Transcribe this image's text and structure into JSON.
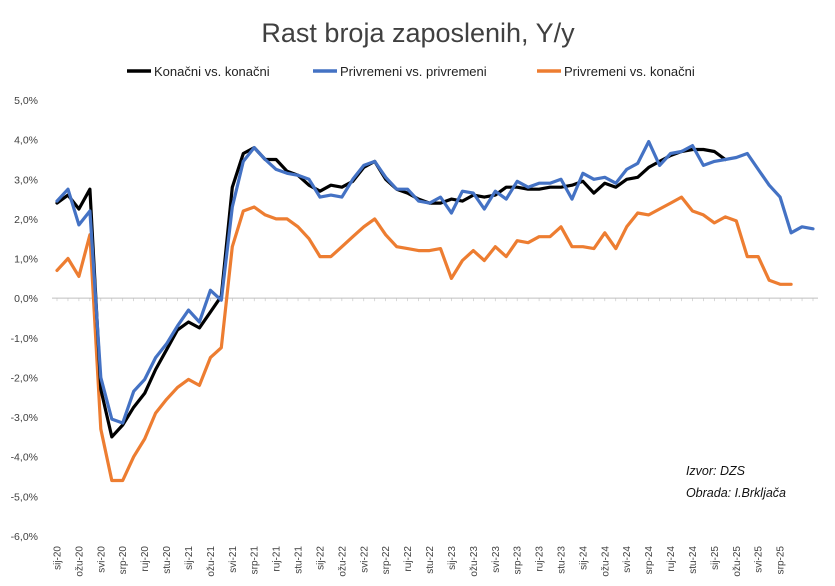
{
  "chart_data": {
    "type": "line",
    "title": "Rast broja zaposlenih, Y/y",
    "xlabel": "",
    "ylabel": "",
    "ylim": [
      -6.0,
      5.0
    ],
    "y_ticks": [
      "-6,0%",
      "-5,0%",
      "-4,0%",
      "-3,0%",
      "-2,0%",
      "-1,0%",
      "0,0%",
      "1,0%",
      "2,0%",
      "3,0%",
      "4,0%",
      "5,0%"
    ],
    "x_ticks": [
      "sij-20",
      "ožu-20",
      "svi-20",
      "srp-20",
      "ruj-20",
      "stu-20",
      "sij-21",
      "ožu-21",
      "svi-21",
      "srp-21",
      "ruj-21",
      "stu-21",
      "sij-22",
      "ožu-22",
      "svi-22",
      "srp-22",
      "ruj-22",
      "stu-22",
      "sij-23",
      "ožu-23",
      "svi-23",
      "srp-23",
      "ruj-23",
      "stu-23",
      "sij-24",
      "ožu-24",
      "svi-24",
      "srp-24",
      "ruj-24",
      "stu-24",
      "sij-25",
      "ožu-25",
      "svi-25",
      "srp-25"
    ],
    "grid": false,
    "legend_position": "top",
    "series": [
      {
        "name": "Konačni vs. konačni",
        "color": "#000000",
        "values": [
          2.4,
          2.6,
          2.25,
          2.75,
          -2.3,
          -3.5,
          -3.2,
          -2.75,
          -2.4,
          -1.8,
          -1.3,
          -0.8,
          -0.6,
          -0.75,
          -0.35,
          0.05,
          2.8,
          3.65,
          3.8,
          3.5,
          3.5,
          3.2,
          3.1,
          2.85,
          2.7,
          2.85,
          2.8,
          2.95,
          3.3,
          3.45,
          3.0,
          2.75,
          2.65,
          2.5,
          2.4,
          2.4,
          2.5,
          2.45,
          2.6,
          2.55,
          2.6,
          2.8,
          2.8,
          2.75,
          2.75,
          2.8,
          2.8,
          2.85,
          2.95,
          2.65,
          2.9,
          2.8,
          3.0,
          3.05,
          3.3,
          3.45,
          3.6,
          3.7,
          3.75,
          3.75,
          3.7,
          3.5
        ]
      },
      {
        "name": "Privremeni vs. privremeni",
        "color": "#4472C4",
        "values": [
          2.45,
          2.75,
          1.85,
          2.2,
          -2.0,
          -3.05,
          -3.15,
          -2.35,
          -2.05,
          -1.5,
          -1.15,
          -0.7,
          -0.3,
          -0.6,
          0.2,
          -0.05,
          2.3,
          3.45,
          3.8,
          3.5,
          3.25,
          3.15,
          3.1,
          3.0,
          2.55,
          2.6,
          2.55,
          3.0,
          3.35,
          3.45,
          3.05,
          2.75,
          2.75,
          2.45,
          2.4,
          2.55,
          2.15,
          2.7,
          2.65,
          2.25,
          2.7,
          2.5,
          2.95,
          2.8,
          2.9,
          2.9,
          3.0,
          2.5,
          3.15,
          3.0,
          3.05,
          2.9,
          3.25,
          3.4,
          3.95,
          3.35,
          3.65,
          3.7,
          3.85,
          3.35,
          3.45,
          3.5,
          3.55,
          3.65,
          3.25,
          2.85,
          2.55,
          1.65,
          1.8,
          1.75
        ]
      },
      {
        "name": "Privremeni vs. konačni",
        "color": "#ED7D31",
        "values": [
          0.7,
          1.0,
          0.55,
          1.6,
          -3.3,
          -4.6,
          -4.6,
          -4.0,
          -3.55,
          -2.9,
          -2.55,
          -2.25,
          -2.05,
          -2.2,
          -1.5,
          -1.25,
          1.3,
          2.2,
          2.3,
          2.1,
          2.0,
          2.0,
          1.8,
          1.5,
          1.05,
          1.05,
          1.3,
          1.55,
          1.8,
          2.0,
          1.6,
          1.3,
          1.25,
          1.2,
          1.2,
          1.25,
          0.5,
          0.95,
          1.2,
          0.95,
          1.3,
          1.05,
          1.45,
          1.4,
          1.55,
          1.55,
          1.8,
          1.3,
          1.3,
          1.25,
          1.65,
          1.25,
          1.8,
          2.15,
          2.1,
          2.25,
          2.4,
          2.55,
          2.2,
          2.1,
          1.9,
          2.05,
          1.95,
          1.05,
          1.05,
          0.45,
          0.35,
          0.35
        ]
      }
    ],
    "annotations": [
      "Izvor: DZS",
      "Obrada: I.Brkljača"
    ]
  }
}
